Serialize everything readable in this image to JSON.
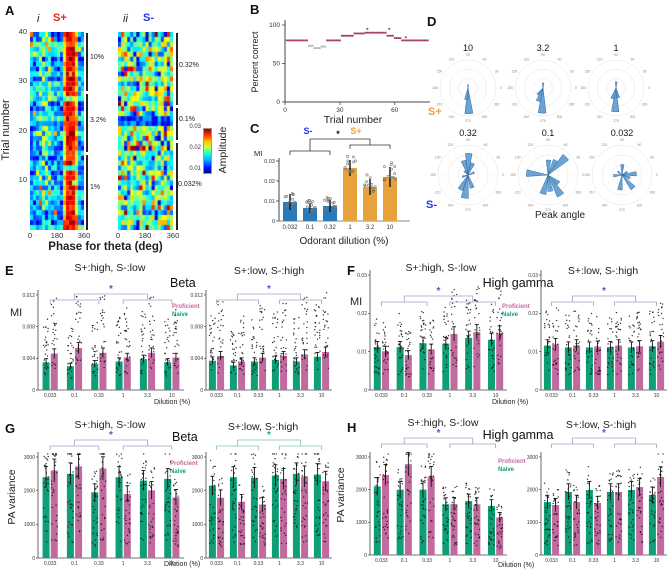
{
  "palette": {
    "naive_green": "#0f9f76",
    "proficient_pink": "#c16a9f",
    "sminus_bar": "#2a7ab9",
    "splus_bar": "#e9a23b",
    "splus_red": "#e8231a",
    "sminus_blue": "#2438dd",
    "splus_orange": "#e8a33c",
    "points_maroon": "#a23a5c",
    "points_muted": "#b5b5b5",
    "star_purple": "#8040c8",
    "bracket_gray": "#a8a0c8",
    "star_green": "#28a878",
    "bracket_green": "#7cc8a8",
    "rose_fill": "#5598cf",
    "rose_stroke": "#2f6a9e",
    "axis": "#444"
  },
  "letters": {
    "A": "A",
    "B": "B",
    "C": "C",
    "D": "D",
    "E": "E",
    "F": "F",
    "G": "G",
    "H": "H"
  },
  "panelA": {
    "sub_i": "i",
    "sub_ii": "ii",
    "splus": "S+",
    "sminus": "S-",
    "ylabel": "Trial number",
    "xlabel": "Phase for theta (deg)",
    "yticks": [
      "40",
      "30",
      "20",
      "10"
    ],
    "xticks": [
      "0",
      "180",
      "360"
    ],
    "left_conc": [
      "10%",
      "3.2%",
      "1%"
    ],
    "right_conc": [
      "0.32%",
      "0.1%",
      "0.032%"
    ],
    "colorbar_ticks": [
      "0.03",
      "0.02",
      "0.01"
    ],
    "colorbar_label": "Amplitude"
  },
  "panelD": {
    "splus": "S+",
    "sminus": "S-"
  },
  "chart_data": [
    {
      "id": "A",
      "type": "heatmap",
      "ylabel": "Trial number",
      "xlabel": "Phase for theta (deg)",
      "x_range_deg": [
        0,
        360
      ],
      "trials": 40,
      "amplitude_scale": [
        0.01,
        0.03
      ],
      "colorbar_label": "Amplitude",
      "maps": [
        {
          "name": "S+",
          "dilutions": [
            "1%",
            "3.2%",
            "10%"
          ],
          "pattern": "strong high-amplitude band near 230-310 deg across trials"
        },
        {
          "name": "S-",
          "dilutions": [
            "0.032%",
            "0.1%",
            "0.32%"
          ],
          "pattern": "diffuse low-to-moderate amplitude speckle"
        }
      ]
    },
    {
      "id": "B",
      "type": "scatter",
      "ylabel": "Percent correct",
      "xlabel": "Trial number",
      "yticks": [
        0,
        50,
        100
      ],
      "xticks": [
        0,
        30,
        60
      ],
      "xlim": [
        0,
        80
      ],
      "ylim": [
        0,
        110
      ],
      "segments": [
        [
          1,
          12,
          80
        ],
        [
          13,
          15,
          73
        ],
        [
          16,
          19,
          70
        ],
        [
          20,
          22,
          72
        ],
        [
          23,
          30,
          80
        ],
        [
          31,
          37,
          86
        ],
        [
          38,
          43,
          89
        ],
        [
          44,
          55,
          90
        ],
        [
          56,
          59,
          86
        ],
        [
          60,
          63,
          83
        ],
        [
          64,
          78,
          80
        ]
      ],
      "muted_segments": [
        1,
        2,
        3
      ],
      "extra_points": [
        [
          45,
          95
        ],
        [
          57,
          95
        ],
        [
          66,
          84
        ]
      ]
    },
    {
      "id": "C",
      "type": "bar",
      "ylabel": "MI",
      "xlabel": "Odorant dilution (%)",
      "categories": [
        "0.032",
        "0.1",
        "0.32",
        "1",
        "3.2",
        "10"
      ],
      "values": [
        0.0095,
        0.0065,
        0.0075,
        0.0265,
        0.017,
        0.022
      ],
      "errors": [
        0.004,
        0.0025,
        0.003,
        0.004,
        0.004,
        0.005
      ],
      "yticks": [
        0,
        0.01,
        0.02,
        0.03
      ],
      "groups": [
        {
          "label": "S-",
          "color_key": "sminus_bar",
          "bars": [
            0,
            2
          ]
        },
        {
          "label": "S+",
          "color_key": "splus_bar",
          "bars": [
            3,
            5
          ]
        }
      ],
      "sig": "*"
    },
    {
      "id": "D",
      "type": "rose",
      "xlabel": "Peak angle",
      "row_labels": [
        "S+",
        "S-"
      ],
      "angle_ticks": [
        0,
        30,
        60,
        90,
        120,
        150,
        180,
        210,
        240,
        270,
        300,
        330
      ],
      "plots": [
        {
          "title": "10",
          "row": 0,
          "petals": [
            [
              272,
              0.92
            ],
            [
              262,
              0.42
            ],
            [
              88,
              0.12
            ]
          ]
        },
        {
          "title": "3.2",
          "row": 0,
          "petals": [
            [
              268,
              0.9
            ],
            [
              250,
              0.5
            ],
            [
              232,
              0.3
            ],
            [
              88,
              0.18
            ]
          ]
        },
        {
          "title": "1",
          "row": 0,
          "petals": [
            [
              268,
              0.85
            ],
            [
              282,
              0.36
            ],
            [
              252,
              0.4
            ],
            [
              88,
              0.22
            ]
          ]
        },
        {
          "title": "0.32",
          "row": 1,
          "petals": [
            [
              88,
              0.72
            ],
            [
              108,
              0.5
            ],
            [
              68,
              0.42
            ],
            [
              262,
              0.78
            ],
            [
              242,
              0.55
            ],
            [
              288,
              0.45
            ],
            [
              198,
              0.2
            ],
            [
              22,
              0.22
            ],
            [
              132,
              0.18
            ]
          ]
        },
        {
          "title": "0.1",
          "row": 1,
          "petals": [
            [
              88,
              0.5
            ],
            [
              45,
              0.85
            ],
            [
              62,
              0.55
            ],
            [
              175,
              0.72
            ],
            [
              255,
              0.65
            ],
            [
              278,
              0.55
            ],
            [
              302,
              0.8
            ],
            [
              322,
              0.45
            ]
          ]
        },
        {
          "title": "0.032",
          "row": 1,
          "petals": [
            [
              88,
              0.35
            ],
            [
              5,
              0.48
            ],
            [
              310,
              0.58
            ],
            [
              262,
              0.5
            ],
            [
              185,
              0.28
            ],
            [
              140,
              0.18
            ],
            [
              338,
              0.28
            ],
            [
              32,
              0.2
            ]
          ]
        }
      ]
    },
    {
      "id": "E",
      "type": "bar",
      "band": "Beta",
      "ylabel": "MI",
      "xlabel": "Dilution (%)",
      "categories": [
        "0.033",
        "0.1",
        "0.33",
        "1",
        "3.3",
        "10"
      ],
      "yticks": [
        0,
        0.004,
        0.008,
        0.012
      ],
      "subplots": [
        {
          "title": "S+:high, S-:low",
          "sig": "*",
          "sig_color_key": "star_purple",
          "bracket_color_key": "bracket_gray",
          "series": [
            {
              "name": "Naive",
              "color_key": "naive_green",
              "values": [
                0.0035,
                0.003,
                0.0033,
                0.0036,
                0.0039,
                0.0035
              ]
            },
            {
              "name": "Proficient",
              "color_key": "proficient_pink",
              "values": [
                0.0046,
                0.0053,
                0.0047,
                0.0041,
                0.0047,
                0.0041
              ]
            }
          ]
        },
        {
          "title": "S+:low, S-:high",
          "sig": "*",
          "sig_color_key": "star_purple",
          "bracket_color_key": "bracket_gray",
          "series": [
            {
              "name": "Naive",
              "color_key": "naive_green",
              "values": [
                0.0037,
                0.0031,
                0.0036,
                0.0038,
                0.0036,
                0.0042
              ]
            },
            {
              "name": "Proficient",
              "color_key": "proficient_pink",
              "values": [
                0.0043,
                0.0036,
                0.0041,
                0.0043,
                0.0045,
                0.0048
              ]
            }
          ]
        }
      ]
    },
    {
      "id": "F",
      "type": "bar",
      "band": "High gamma",
      "ylabel": "MI",
      "xlabel": "Dilution (%)",
      "categories": [
        "0.033",
        "0.1",
        "0.33",
        "1",
        "3.3",
        "10"
      ],
      "yticks": [
        0,
        0.01,
        0.02,
        0.03
      ],
      "subplots": [
        {
          "title": "S+:high, S-:low",
          "sig": "*",
          "sig_color_key": "star_purple",
          "bracket_color_key": "bracket_gray",
          "series": [
            {
              "name": "Naive",
              "color_key": "naive_green",
              "values": [
                0.0112,
                0.0112,
                0.0122,
                0.0121,
                0.0136,
                0.0131
              ]
            },
            {
              "name": "Proficient",
              "color_key": "proficient_pink",
              "values": [
                0.0101,
                0.0091,
                0.0106,
                0.0146,
                0.0151,
                0.0148
              ]
            }
          ]
        },
        {
          "title": "S+:low, S-:high",
          "sig": "*",
          "sig_color_key": "star_purple",
          "bracket_color_key": "bracket_gray",
          "series": [
            {
              "name": "Naive",
              "color_key": "naive_green",
              "values": [
                0.0116,
                0.0111,
                0.0111,
                0.0112,
                0.0111,
                0.0114
              ]
            },
            {
              "name": "Proficient",
              "color_key": "proficient_pink",
              "values": [
                0.0119,
                0.0116,
                0.0113,
                0.0116,
                0.0114,
                0.0126
              ]
            }
          ]
        }
      ]
    },
    {
      "id": "G",
      "type": "bar",
      "band": "Beta",
      "ylabel": "PA variance",
      "xlabel": "Dilution (%)",
      "categories": [
        "0.033",
        "0.1",
        "0.33",
        "1",
        "3.3",
        "10"
      ],
      "yticks": [
        0,
        1000,
        2000,
        3000
      ],
      "subplots": [
        {
          "title": "S+:high, S-:low",
          "sig": "*",
          "sig_color_key": "star_purple",
          "bracket_color_key": "bracket_gray",
          "series": [
            {
              "name": "Naive",
              "color_key": "naive_green",
              "values": [
                2400,
                2500,
                1950,
                2400,
                2300,
                2350
              ]
            },
            {
              "name": "Proficient",
              "color_key": "proficient_pink",
              "values": [
                2600,
                2720,
                2660,
                1900,
                2010,
                1800
              ]
            }
          ]
        },
        {
          "title": "S+:low, S-:high",
          "sig": "*",
          "sig_color_key": "star_green",
          "bracket_color_key": "bracket_green",
          "series": [
            {
              "name": "Naive",
              "color_key": "naive_green",
              "values": [
                2150,
                2400,
                2380,
                2450,
                2500,
                2480
              ]
            },
            {
              "name": "Proficient",
              "color_key": "proficient_pink",
              "values": [
                1790,
                1670,
                1590,
                2350,
                2420,
                2280
              ]
            }
          ]
        }
      ]
    },
    {
      "id": "H",
      "type": "bar",
      "band": "High gamma",
      "ylabel": "PA variance",
      "xlabel": "Dilution (%)",
      "categories": [
        "0.033",
        "0.1",
        "0.33",
        "1",
        "3.3",
        "10"
      ],
      "yticks": [
        0,
        1000,
        2000,
        3000
      ],
      "subplots": [
        {
          "title": "S+:high, S-:low",
          "sig": "*",
          "sig_color_key": "star_purple",
          "bracket_color_key": "bracket_gray",
          "series": [
            {
              "name": "Naive",
              "color_key": "naive_green",
              "values": [
                2100,
                2000,
                2000,
                1550,
                1650,
                1500
              ]
            },
            {
              "name": "Proficient",
              "color_key": "proficient_pink",
              "values": [
                2450,
                2780,
                2400,
                1560,
                1550,
                1150
              ]
            }
          ]
        },
        {
          "title": "S+:low, S-:high",
          "sig": "*",
          "sig_color_key": "star_purple",
          "bracket_color_key": "bracket_gray",
          "series": [
            {
              "name": "Naive",
              "color_key": "naive_green",
              "values": [
                1620,
                1930,
                1990,
                1930,
                1990,
                1840
              ]
            },
            {
              "name": "Proficient",
              "color_key": "proficient_pink",
              "values": [
                1530,
                1620,
                1590,
                1930,
                2080,
                2390
              ]
            }
          ]
        }
      ]
    }
  ]
}
